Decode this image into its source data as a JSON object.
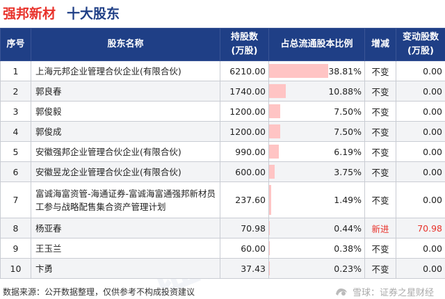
{
  "header": {
    "company": "强邦新材",
    "subtitle": "十大股东"
  },
  "table": {
    "columns": [
      "序号",
      "股东名称",
      "持股数\n(万股)",
      "占总流通股本比例",
      "增减",
      "变动股数\n(万股)"
    ],
    "rows": [
      {
        "rank": "1",
        "name": "上海元邦企业管理合伙企业(有限合伙)",
        "shares": "6210.00",
        "pct_text": "38.81%",
        "pct": 38.81,
        "change": "不变",
        "delta": "0.00"
      },
      {
        "rank": "2",
        "name": "郭良春",
        "shares": "1740.00",
        "pct_text": "10.88%",
        "pct": 10.88,
        "change": "不变",
        "delta": "0.00"
      },
      {
        "rank": "3",
        "name": "郭俊毅",
        "shares": "1200.00",
        "pct_text": "7.50%",
        "pct": 7.5,
        "change": "不变",
        "delta": "0.00"
      },
      {
        "rank": "4",
        "name": "郭俊成",
        "shares": "1200.00",
        "pct_text": "7.50%",
        "pct": 7.5,
        "change": "不变",
        "delta": "0.00"
      },
      {
        "rank": "5",
        "name": "安徽强邦企业管理合伙企业(有限合伙)",
        "shares": "990.00",
        "pct_text": "6.19%",
        "pct": 6.19,
        "change": "不变",
        "delta": "0.00"
      },
      {
        "rank": "6",
        "name": "安徽昱龙企业管理合伙企业(有限合伙)",
        "shares": "600.00",
        "pct_text": "3.75%",
        "pct": 3.75,
        "change": "不变",
        "delta": "0.00"
      },
      {
        "rank": "7",
        "name": "富诚海富资管-海通证券-富诚海富通强邦新材员工参与战略配售集合资产管理计划",
        "shares": "237.60",
        "pct_text": "1.49%",
        "pct": 1.49,
        "change": "不变",
        "delta": "0.00"
      },
      {
        "rank": "8",
        "name": "杨亚春",
        "shares": "70.98",
        "pct_text": "0.44%",
        "pct": 0.44,
        "change": "新进",
        "delta": "70.98"
      },
      {
        "rank": "9",
        "name": "王玉兰",
        "shares": "60.00",
        "pct_text": "0.38%",
        "pct": 0.38,
        "change": "不变",
        "delta": "0.00"
      },
      {
        "rank": "10",
        "name": "卞勇",
        "shares": "37.43",
        "pct_text": "0.23%",
        "pct": 0.23,
        "change": "不变",
        "delta": "0.00"
      }
    ]
  },
  "watermark": "证券之星",
  "footer": {
    "source": "数据来源：公开数据整理，仅供参考不构成投资建议",
    "brand": "雪球：证券之星财经",
    "brand_icon": "snowball-logo-icon"
  },
  "colors": {
    "title_red": "#e8322b",
    "title_blue": "#1f3f86",
    "header_bg": "#1f3f86",
    "bar": "#ffc4c4",
    "new_entry": "#e8322b"
  }
}
